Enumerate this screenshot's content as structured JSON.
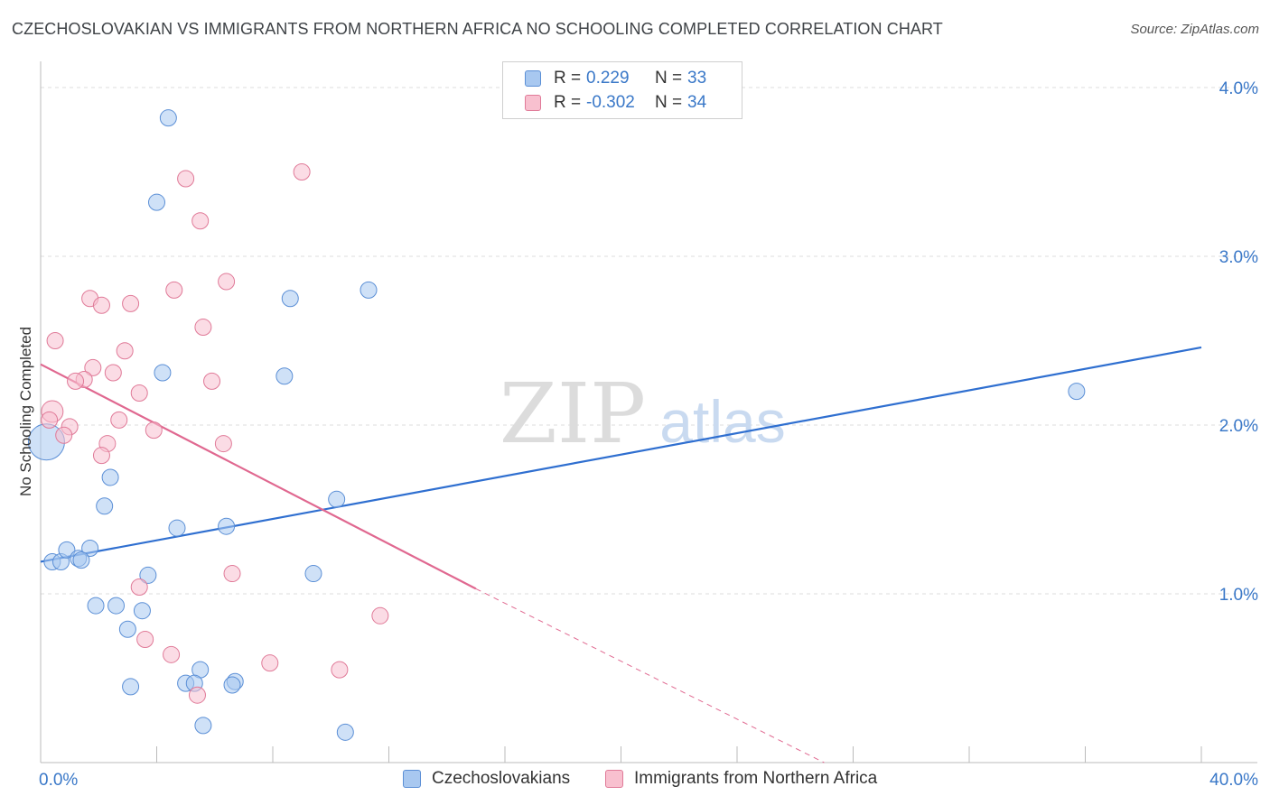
{
  "title": "CZECHOSLOVAKIAN VS IMMIGRANTS FROM NORTHERN AFRICA NO SCHOOLING COMPLETED CORRELATION CHART",
  "source": "Source: ZipAtlas.com",
  "watermark": {
    "zip": "ZIP",
    "atlas": "atlas"
  },
  "legend": {
    "rows": [
      {
        "r_label": "R =",
        "r_value": "0.229",
        "n_label": "N =",
        "n_value": "33",
        "color": "#a8c8f0",
        "border": "#5b8fd6"
      },
      {
        "r_label": "R =",
        "r_value": "-0.302",
        "n_label": "N =",
        "n_value": "34",
        "color": "#f8c0cf",
        "border": "#e07a98"
      }
    ]
  },
  "bottom_legend": {
    "items": [
      {
        "label": "Czechoslovakians",
        "color": "#a8c8f0",
        "border": "#5b8fd6"
      },
      {
        "label": "Immigrants from Northern Africa",
        "color": "#f8c0cf",
        "border": "#e07a98"
      }
    ]
  },
  "chart_data": {
    "type": "scatter",
    "title": "CZECHOSLOVAKIAN VS IMMIGRANTS FROM NORTHERN AFRICA NO SCHOOLING COMPLETED CORRELATION CHART",
    "xlabel": "",
    "ylabel": "No Schooling Completed",
    "xlim": [
      0,
      40
    ],
    "ylim": [
      0,
      4.0
    ],
    "x_tick_labels": [
      "0.0%",
      "40.0%"
    ],
    "y_ticks": [
      1.0,
      2.0,
      3.0,
      4.0
    ],
    "y_tick_labels": [
      "1.0%",
      "2.0%",
      "3.0%",
      "4.0%"
    ],
    "grid": true,
    "series": [
      {
        "name": "Czechoslovakians",
        "color": "#a8c8f0",
        "stroke": "#5b8fd6",
        "line_color": "#2f6fd0",
        "trend": {
          "x0": 0,
          "y0": 1.19,
          "x1": 40,
          "y1": 2.46
        },
        "points": [
          [
            4.4,
            3.82
          ],
          [
            4.0,
            3.32
          ],
          [
            8.6,
            2.75
          ],
          [
            11.3,
            2.8
          ],
          [
            4.2,
            2.31
          ],
          [
            8.4,
            2.29
          ],
          [
            35.7,
            2.2
          ],
          [
            0.2,
            1.9
          ],
          [
            2.4,
            1.69
          ],
          [
            2.2,
            1.52
          ],
          [
            10.2,
            1.56
          ],
          [
            4.7,
            1.39
          ],
          [
            6.4,
            1.4
          ],
          [
            0.4,
            1.19
          ],
          [
            0.7,
            1.19
          ],
          [
            0.9,
            1.26
          ],
          [
            1.3,
            1.21
          ],
          [
            1.7,
            1.27
          ],
          [
            1.4,
            1.2
          ],
          [
            3.7,
            1.11
          ],
          [
            9.4,
            1.12
          ],
          [
            1.9,
            0.93
          ],
          [
            2.6,
            0.93
          ],
          [
            3.5,
            0.9
          ],
          [
            3.0,
            0.79
          ],
          [
            5.5,
            0.55
          ],
          [
            5.0,
            0.47
          ],
          [
            5.3,
            0.47
          ],
          [
            6.7,
            0.48
          ],
          [
            6.6,
            0.46
          ],
          [
            3.1,
            0.45
          ],
          [
            5.6,
            0.22
          ],
          [
            10.5,
            0.18
          ]
        ],
        "sizes": [
          18,
          18,
          18,
          18,
          18,
          18,
          18,
          40,
          18,
          18,
          18,
          18,
          18,
          18,
          18,
          18,
          18,
          18,
          18,
          18,
          18,
          18,
          18,
          18,
          18,
          18,
          18,
          18,
          18,
          18,
          18,
          18,
          18
        ]
      },
      {
        "name": "Immigrants from Northern Africa",
        "color": "#f8c0cf",
        "stroke": "#e07a98",
        "line_color": "#e06890",
        "trend": {
          "x0": 0,
          "y0": 2.36,
          "x1": 15,
          "y1": 1.03,
          "dash_x1": 27,
          "dash_y1": 0.0
        },
        "points": [
          [
            9.0,
            3.5
          ],
          [
            5.0,
            3.46
          ],
          [
            5.5,
            3.21
          ],
          [
            6.4,
            2.85
          ],
          [
            4.6,
            2.8
          ],
          [
            1.7,
            2.75
          ],
          [
            2.1,
            2.71
          ],
          [
            3.1,
            2.72
          ],
          [
            5.6,
            2.58
          ],
          [
            0.5,
            2.5
          ],
          [
            2.9,
            2.44
          ],
          [
            1.8,
            2.34
          ],
          [
            2.5,
            2.31
          ],
          [
            1.5,
            2.27
          ],
          [
            1.2,
            2.26
          ],
          [
            5.9,
            2.26
          ],
          [
            3.4,
            2.19
          ],
          [
            0.4,
            2.08
          ],
          [
            0.3,
            2.03
          ],
          [
            2.7,
            2.03
          ],
          [
            1.0,
            1.99
          ],
          [
            3.9,
            1.97
          ],
          [
            0.8,
            1.94
          ],
          [
            6.3,
            1.89
          ],
          [
            2.3,
            1.89
          ],
          [
            2.1,
            1.82
          ],
          [
            3.4,
            1.04
          ],
          [
            6.6,
            1.12
          ],
          [
            11.7,
            0.87
          ],
          [
            3.6,
            0.73
          ],
          [
            4.5,
            0.64
          ],
          [
            7.9,
            0.59
          ],
          [
            10.3,
            0.55
          ],
          [
            5.4,
            0.4
          ]
        ],
        "sizes": [
          18,
          18,
          18,
          18,
          18,
          18,
          18,
          18,
          18,
          18,
          18,
          18,
          18,
          18,
          18,
          18,
          18,
          24,
          18,
          18,
          18,
          18,
          18,
          18,
          18,
          18,
          18,
          18,
          18,
          18,
          18,
          18,
          18,
          18
        ]
      }
    ]
  }
}
